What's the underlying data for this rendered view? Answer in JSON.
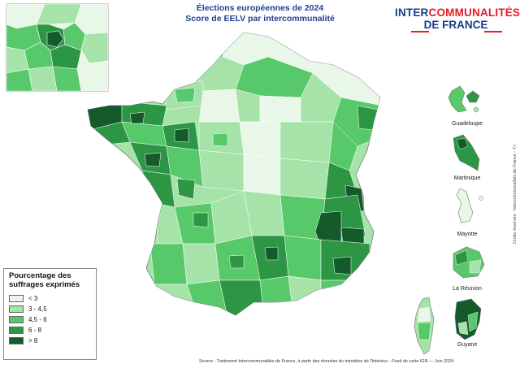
{
  "title": {
    "line1": "Élections européennes de 2024",
    "line2": "Score de EELV par intercommunalité"
  },
  "brand": {
    "part1": "INTER",
    "part2": "COMMUNALITÉS",
    "line2": "DE FRANCE"
  },
  "legend": {
    "title_line1": "Pourcentage des",
    "title_line2": "suffrages exprimés",
    "items": [
      {
        "label": "< 3",
        "color": "#e8f7e8"
      },
      {
        "label": "3 - 4,5",
        "color": "#a6e3a9"
      },
      {
        "label": "4,5 - 6",
        "color": "#58c96a"
      },
      {
        "label": "6 - 8",
        "color": "#2d9645"
      },
      {
        "label": "> 8",
        "color": "#155a2b"
      }
    ]
  },
  "insets": {
    "guadeloupe": "Guadeloupe",
    "martinique": "Martinique",
    "mayotte": "Mayotte",
    "reunion": "La Réunion",
    "guyane": "Guyane"
  },
  "source": "Source : Traitement Intercommunalités de France, à partir des données du ministère de l'Intérieur - Fond de carte IGN — Juin 2024",
  "rights": "Droits réservés - Intercommunalités de France - YJ"
}
